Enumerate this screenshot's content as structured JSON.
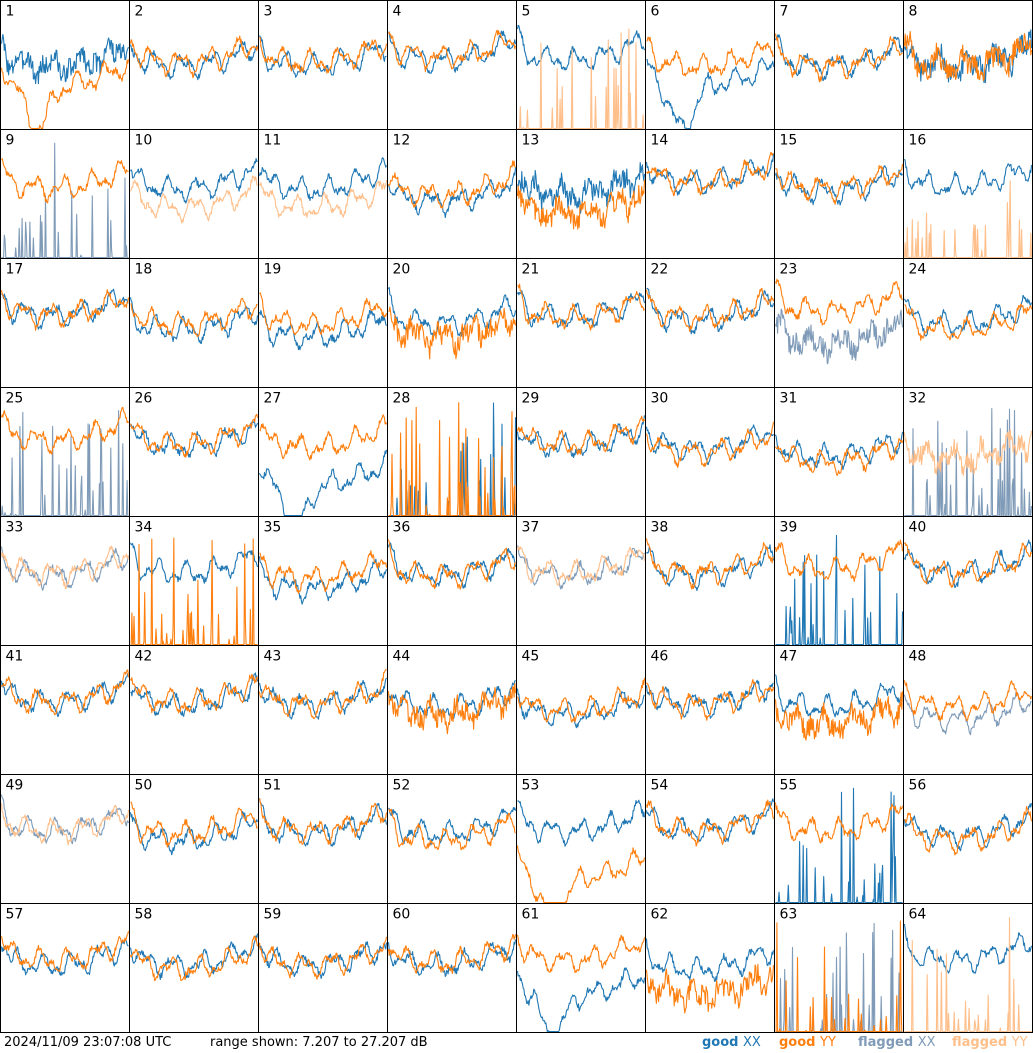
{
  "timestamp": "2024/11/09 23:07:08 UTC",
  "range_text": "range shown: 7.207 to 27.207 dB",
  "colors": {
    "good_xx": "#1f77b4",
    "good_yy": "#ff7f0e",
    "flagged_xx": "#7f9bb8",
    "flagged_yy": "#ffbf8a"
  },
  "legend": [
    {
      "status": "good",
      "pol": "XX",
      "color": "#1f77b4"
    },
    {
      "status": "good",
      "pol": "YY",
      "color": "#ff7f0e"
    },
    {
      "status": "flagged",
      "pol": "XX",
      "color": "#7f9bb8"
    },
    {
      "status": "flagged",
      "pol": "YY",
      "color": "#ffbf8a"
    }
  ],
  "chart_data": {
    "type": "line",
    "layout": "8x8 small multiples, one panel per tile",
    "ylim": [
      7.207,
      27.207
    ],
    "yunit": "dB",
    "series_names": [
      "XX",
      "YY"
    ],
    "panels": [
      {
        "label": "1",
        "xx": "good",
        "yy": "good",
        "xx_level": 0.55,
        "yy_level": 0.4,
        "xx_shape": "noisy",
        "yy_shape": "dip"
      },
      {
        "label": "2",
        "xx": "good",
        "yy": "good",
        "xx_level": 0.55,
        "yy_level": 0.58,
        "xx_shape": "normal",
        "yy_shape": "normal"
      },
      {
        "label": "3",
        "xx": "good",
        "yy": "good",
        "xx_level": 0.55,
        "yy_level": 0.58,
        "xx_shape": "normal",
        "yy_shape": "normal"
      },
      {
        "label": "4",
        "xx": "good",
        "yy": "good",
        "xx_level": 0.6,
        "yy_level": 0.62,
        "xx_shape": "normal",
        "yy_shape": "normal"
      },
      {
        "label": "5",
        "xx": "good",
        "yy": "flagged",
        "xx_level": 0.6,
        "yy_level": 0.0,
        "xx_shape": "normal",
        "yy_shape": "spikes"
      },
      {
        "label": "6",
        "xx": "good",
        "yy": "good",
        "xx_level": 0.4,
        "yy_level": 0.55,
        "xx_shape": "dip",
        "yy_shape": "normal"
      },
      {
        "label": "7",
        "xx": "good",
        "yy": "good",
        "xx_level": 0.55,
        "yy_level": 0.55,
        "xx_shape": "normal",
        "yy_shape": "normal"
      },
      {
        "label": "8",
        "xx": "good",
        "yy": "good",
        "xx_level": 0.55,
        "yy_level": 0.55,
        "xx_shape": "noisy",
        "yy_shape": "noisy"
      },
      {
        "label": "9",
        "xx": "flagged",
        "yy": "good",
        "xx_level": 0.0,
        "yy_level": 0.6,
        "xx_shape": "spikes",
        "yy_shape": "normal"
      },
      {
        "label": "10",
        "xx": "good",
        "yy": "flagged",
        "xx_level": 0.6,
        "yy_level": 0.45,
        "xx_shape": "normal",
        "yy_shape": "normal"
      },
      {
        "label": "11",
        "xx": "good",
        "yy": "flagged",
        "xx_level": 0.6,
        "yy_level": 0.45,
        "xx_shape": "normal",
        "yy_shape": "normal"
      },
      {
        "label": "12",
        "xx": "good",
        "yy": "good",
        "xx_level": 0.5,
        "yy_level": 0.55,
        "xx_shape": "normal",
        "yy_shape": "normal"
      },
      {
        "label": "13",
        "xx": "good",
        "yy": "good",
        "xx_level": 0.55,
        "yy_level": 0.4,
        "xx_shape": "noisy",
        "yy_shape": "noisy"
      },
      {
        "label": "14",
        "xx": "good",
        "yy": "good",
        "xx_level": 0.65,
        "yy_level": 0.65,
        "xx_shape": "normal",
        "yy_shape": "normal"
      },
      {
        "label": "15",
        "xx": "good",
        "yy": "good",
        "xx_level": 0.58,
        "yy_level": 0.6,
        "xx_shape": "normal",
        "yy_shape": "normal"
      },
      {
        "label": "16",
        "xx": "good",
        "yy": "flagged",
        "xx_level": 0.62,
        "yy_level": 0.0,
        "xx_shape": "normal",
        "yy_shape": "spikes"
      },
      {
        "label": "17",
        "xx": "good",
        "yy": "good",
        "xx_level": 0.62,
        "yy_level": 0.62,
        "xx_shape": "normal",
        "yy_shape": "normal"
      },
      {
        "label": "18",
        "xx": "good",
        "yy": "good",
        "xx_level": 0.5,
        "yy_level": 0.55,
        "xx_shape": "normal",
        "yy_shape": "normal"
      },
      {
        "label": "19",
        "xx": "good",
        "yy": "good",
        "xx_level": 0.45,
        "yy_level": 0.55,
        "xx_shape": "normal",
        "yy_shape": "normal"
      },
      {
        "label": "20",
        "xx": "good",
        "yy": "good",
        "xx_level": 0.55,
        "yy_level": 0.45,
        "xx_shape": "normal",
        "yy_shape": "noisy"
      },
      {
        "label": "21",
        "xx": "good",
        "yy": "good",
        "xx_level": 0.6,
        "yy_level": 0.6,
        "xx_shape": "normal",
        "yy_shape": "normal"
      },
      {
        "label": "22",
        "xx": "good",
        "yy": "good",
        "xx_level": 0.58,
        "yy_level": 0.6,
        "xx_shape": "normal",
        "yy_shape": "normal"
      },
      {
        "label": "23",
        "xx": "flagged",
        "yy": "good",
        "xx_level": 0.4,
        "yy_level": 0.65,
        "xx_shape": "noisy",
        "yy_shape": "normal"
      },
      {
        "label": "24",
        "xx": "good",
        "yy": "good",
        "xx_level": 0.55,
        "yy_level": 0.5,
        "xx_shape": "normal",
        "yy_shape": "normal"
      },
      {
        "label": "25",
        "xx": "flagged",
        "yy": "good",
        "xx_level": 0.0,
        "yy_level": 0.65,
        "xx_shape": "spikes",
        "yy_shape": "normal"
      },
      {
        "label": "26",
        "xx": "good",
        "yy": "good",
        "xx_level": 0.6,
        "yy_level": 0.62,
        "xx_shape": "normal",
        "yy_shape": "normal"
      },
      {
        "label": "27",
        "xx": "good",
        "yy": "good",
        "xx_level": 0.3,
        "yy_level": 0.6,
        "xx_shape": "dip",
        "yy_shape": "normal"
      },
      {
        "label": "28",
        "xx": "good",
        "yy": "good",
        "xx_level": 0.0,
        "yy_level": 0.0,
        "xx_shape": "spikes",
        "yy_shape": "spikes"
      },
      {
        "label": "29",
        "xx": "good",
        "yy": "good",
        "xx_level": 0.6,
        "yy_level": 0.62,
        "xx_shape": "normal",
        "yy_shape": "normal"
      },
      {
        "label": "30",
        "xx": "good",
        "yy": "good",
        "xx_level": 0.58,
        "yy_level": 0.55,
        "xx_shape": "normal",
        "yy_shape": "normal"
      },
      {
        "label": "31",
        "xx": "good",
        "yy": "good",
        "xx_level": 0.52,
        "yy_level": 0.48,
        "xx_shape": "normal",
        "yy_shape": "normal"
      },
      {
        "label": "32",
        "xx": "flagged",
        "yy": "flagged",
        "xx_level": 0.0,
        "yy_level": 0.5,
        "xx_shape": "spikes",
        "yy_shape": "noisy"
      },
      {
        "label": "33",
        "xx": "flagged",
        "yy": "flagged",
        "xx_level": 0.6,
        "yy_level": 0.62,
        "xx_shape": "normal",
        "yy_shape": "normal"
      },
      {
        "label": "34",
        "xx": "good",
        "yy": "good",
        "xx_level": 0.62,
        "yy_level": 0.0,
        "xx_shape": "normal",
        "yy_shape": "spikes"
      },
      {
        "label": "35",
        "xx": "good",
        "yy": "good",
        "xx_level": 0.5,
        "yy_level": 0.58,
        "xx_shape": "normal",
        "yy_shape": "normal"
      },
      {
        "label": "36",
        "xx": "good",
        "yy": "good",
        "xx_level": 0.6,
        "yy_level": 0.6,
        "xx_shape": "normal",
        "yy_shape": "normal"
      },
      {
        "label": "37",
        "xx": "flagged",
        "yy": "flagged",
        "xx_level": 0.6,
        "yy_level": 0.62,
        "xx_shape": "normal",
        "yy_shape": "normal"
      },
      {
        "label": "38",
        "xx": "good",
        "yy": "good",
        "xx_level": 0.6,
        "yy_level": 0.62,
        "xx_shape": "normal",
        "yy_shape": "normal"
      },
      {
        "label": "39",
        "xx": "good",
        "yy": "good",
        "xx_level": 0.0,
        "yy_level": 0.65,
        "xx_shape": "spikes",
        "yy_shape": "normal"
      },
      {
        "label": "40",
        "xx": "good",
        "yy": "good",
        "xx_level": 0.62,
        "yy_level": 0.62,
        "xx_shape": "normal",
        "yy_shape": "normal"
      },
      {
        "label": "41",
        "xx": "good",
        "yy": "good",
        "xx_level": 0.62,
        "yy_level": 0.62,
        "xx_shape": "normal",
        "yy_shape": "normal"
      },
      {
        "label": "42",
        "xx": "good",
        "yy": "good",
        "xx_level": 0.6,
        "yy_level": 0.62,
        "xx_shape": "normal",
        "yy_shape": "normal"
      },
      {
        "label": "43",
        "xx": "good",
        "yy": "good",
        "xx_level": 0.6,
        "yy_level": 0.6,
        "xx_shape": "normal",
        "yy_shape": "normal"
      },
      {
        "label": "44",
        "xx": "good",
        "yy": "good",
        "xx_level": 0.58,
        "yy_level": 0.52,
        "xx_shape": "normal",
        "yy_shape": "noisy"
      },
      {
        "label": "45",
        "xx": "good",
        "yy": "good",
        "xx_level": 0.52,
        "yy_level": 0.55,
        "xx_shape": "normal",
        "yy_shape": "normal"
      },
      {
        "label": "46",
        "xx": "good",
        "yy": "good",
        "xx_level": 0.6,
        "yy_level": 0.6,
        "xx_shape": "normal",
        "yy_shape": "normal"
      },
      {
        "label": "47",
        "xx": "good",
        "yy": "good",
        "xx_level": 0.58,
        "yy_level": 0.45,
        "xx_shape": "normal",
        "yy_shape": "noisy"
      },
      {
        "label": "48",
        "xx": "flagged",
        "yy": "good",
        "xx_level": 0.48,
        "yy_level": 0.58,
        "xx_shape": "normal",
        "yy_shape": "normal"
      },
      {
        "label": "49",
        "xx": "flagged",
        "yy": "flagged",
        "xx_level": 0.62,
        "yy_level": 0.62,
        "xx_shape": "normal",
        "yy_shape": "normal"
      },
      {
        "label": "50",
        "xx": "good",
        "yy": "good",
        "xx_level": 0.55,
        "yy_level": 0.6,
        "xx_shape": "normal",
        "yy_shape": "normal"
      },
      {
        "label": "51",
        "xx": "good",
        "yy": "good",
        "xx_level": 0.6,
        "yy_level": 0.62,
        "xx_shape": "normal",
        "yy_shape": "normal"
      },
      {
        "label": "52",
        "xx": "good",
        "yy": "good",
        "xx_level": 0.6,
        "yy_level": 0.55,
        "xx_shape": "normal",
        "yy_shape": "normal"
      },
      {
        "label": "53",
        "xx": "good",
        "yy": "good",
        "xx_level": 0.62,
        "yy_level": 0.25,
        "xx_shape": "normal",
        "yy_shape": "dip"
      },
      {
        "label": "54",
        "xx": "good",
        "yy": "good",
        "xx_level": 0.62,
        "yy_level": 0.62,
        "xx_shape": "normal",
        "yy_shape": "normal"
      },
      {
        "label": "55",
        "xx": "good",
        "yy": "good",
        "xx_level": 0.0,
        "yy_level": 0.62,
        "xx_shape": "spikes",
        "yy_shape": "normal"
      },
      {
        "label": "56",
        "xx": "good",
        "yy": "good",
        "xx_level": 0.58,
        "yy_level": 0.55,
        "xx_shape": "normal",
        "yy_shape": "normal"
      },
      {
        "label": "57",
        "xx": "good",
        "yy": "good",
        "xx_level": 0.58,
        "yy_level": 0.62,
        "xx_shape": "normal",
        "yy_shape": "normal"
      },
      {
        "label": "58",
        "xx": "good",
        "yy": "good",
        "xx_level": 0.58,
        "yy_level": 0.55,
        "xx_shape": "normal",
        "yy_shape": "normal"
      },
      {
        "label": "59",
        "xx": "good",
        "yy": "good",
        "xx_level": 0.58,
        "yy_level": 0.58,
        "xx_shape": "normal",
        "yy_shape": "normal"
      },
      {
        "label": "60",
        "xx": "good",
        "yy": "good",
        "xx_level": 0.58,
        "yy_level": 0.6,
        "xx_shape": "normal",
        "yy_shape": "normal"
      },
      {
        "label": "61",
        "xx": "good",
        "yy": "good",
        "xx_level": 0.35,
        "yy_level": 0.62,
        "xx_shape": "dip",
        "yy_shape": "normal"
      },
      {
        "label": "62",
        "xx": "good",
        "yy": "good",
        "xx_level": 0.55,
        "yy_level": 0.35,
        "xx_shape": "normal",
        "yy_shape": "noisy"
      },
      {
        "label": "63",
        "xx": "flagged",
        "yy": "good",
        "xx_level": 0.0,
        "yy_level": 0.0,
        "xx_shape": "spikes",
        "yy_shape": "spikes"
      },
      {
        "label": "64",
        "xx": "good",
        "yy": "flagged",
        "xx_level": 0.62,
        "yy_level": 0.0,
        "xx_shape": "normal",
        "yy_shape": "spikes"
      }
    ]
  }
}
